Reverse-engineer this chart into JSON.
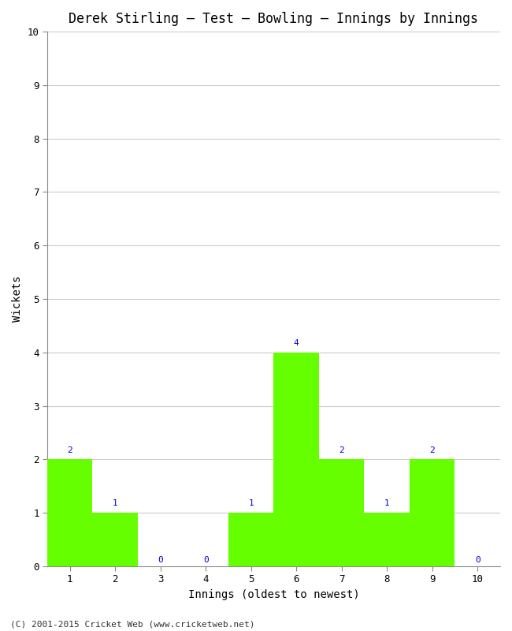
{
  "title": "Derek Stirling – Test – Bowling – Innings by Innings",
  "xlabel": "Innings (oldest to newest)",
  "ylabel": "Wickets",
  "categories": [
    1,
    2,
    3,
    4,
    5,
    6,
    7,
    8,
    9,
    10
  ],
  "values": [
    2,
    1,
    0,
    0,
    1,
    4,
    2,
    1,
    2,
    0
  ],
  "bar_color": "#66ff00",
  "bar_edge_color": "#66ff00",
  "label_color": "#0000cc",
  "ylim": [
    0,
    10
  ],
  "yticks": [
    0,
    1,
    2,
    3,
    4,
    5,
    6,
    7,
    8,
    9,
    10
  ],
  "xlim": [
    0.5,
    10.5
  ],
  "background_color": "#ffffff",
  "grid_color": "#cccccc",
  "title_fontsize": 12,
  "axis_label_fontsize": 10,
  "tick_fontsize": 9,
  "label_fontsize": 8,
  "footer": "(C) 2001-2015 Cricket Web (www.cricketweb.net)"
}
